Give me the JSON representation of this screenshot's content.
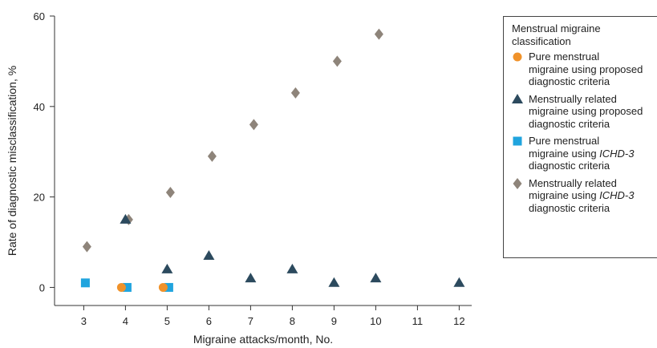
{
  "chart_data": {
    "type": "scatter",
    "xlabel": "Migraine attacks/month, No.",
    "ylabel": "Rate of diagnostic misclassification, %",
    "xlim": [
      2.3,
      12.3
    ],
    "ylim": [
      -4,
      60
    ],
    "x_ticks": [
      3,
      4,
      5,
      6,
      7,
      8,
      9,
      10,
      11,
      12
    ],
    "y_ticks": [
      0,
      20,
      40,
      60
    ],
    "legend_title": "Menstrual migraine classification",
    "legend_position": "right",
    "series": [
      {
        "name": "Pure menstrual migraine using proposed diagnostic criteria",
        "marker": "circle",
        "color": "#F0922A",
        "points": [
          [
            4,
            0
          ],
          [
            5,
            0
          ]
        ]
      },
      {
        "name": "Menstrually related migraine using proposed diagnostic criteria",
        "marker": "triangle",
        "color": "#2C4A5E",
        "points": [
          [
            4,
            15
          ],
          [
            5,
            4
          ],
          [
            6,
            7
          ],
          [
            7,
            2
          ],
          [
            8,
            4
          ],
          [
            9,
            1
          ],
          [
            10,
            2
          ],
          [
            12,
            1
          ]
        ]
      },
      {
        "name": "Pure menstrual migraine using ICHD-3 diagnostic criteria",
        "marker": "square",
        "color": "#20A4DE",
        "points": [
          [
            3,
            1
          ],
          [
            4,
            0
          ],
          [
            5,
            0
          ]
        ]
      },
      {
        "name": "Menstrually related migraine using ICHD-3 diagnostic criteria",
        "marker": "diamond",
        "color": "#8E847A",
        "points": [
          [
            3,
            9
          ],
          [
            4,
            15
          ],
          [
            5,
            21
          ],
          [
            6,
            29
          ],
          [
            7,
            36
          ],
          [
            8,
            43
          ],
          [
            9,
            50
          ],
          [
            10,
            56
          ]
        ]
      }
    ]
  },
  "legend": {
    "title": "Menstrual migraine\nclassification",
    "items": [
      {
        "pre": "Pure menstrual\nmigraine using proposed\ndiagnostic criteria",
        "em": "",
        "post": ""
      },
      {
        "pre": "Menstrually related\nmigraine using proposed\ndiagnostic criteria",
        "em": "",
        "post": ""
      },
      {
        "pre": "Pure menstrual\nmigraine using ",
        "em": "ICHD-3",
        "post": "\ndiagnostic criteria"
      },
      {
        "pre": "Menstrually related\nmigraine using ",
        "em": "ICHD-3",
        "post": "\ndiagnostic criteria"
      }
    ]
  }
}
